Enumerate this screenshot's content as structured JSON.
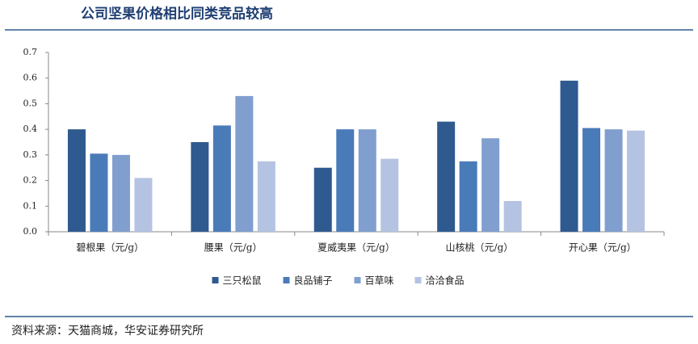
{
  "chart_data": {
    "type": "bar",
    "title": "公司坚果价格相比同类竞品较高",
    "source": "资料来源：天猫商城，华安证券研究所",
    "categories": [
      "碧根果（元/g）",
      "腰果（元/g）",
      "夏威夷果（元/g）",
      "山核桃（元/g）",
      "开心果（元/g）"
    ],
    "series": [
      {
        "name": "三只松鼠",
        "color": "#2f5a8f",
        "values": [
          0.4,
          0.35,
          0.25,
          0.43,
          0.59
        ]
      },
      {
        "name": "良品铺子",
        "color": "#4a7bb9",
        "values": [
          0.305,
          0.415,
          0.4,
          0.275,
          0.405
        ]
      },
      {
        "name": "百草味",
        "color": "#809fcf",
        "values": [
          0.3,
          0.53,
          0.4,
          0.365,
          0.4
        ]
      },
      {
        "name": "洽洽食品",
        "color": "#b4c3e1",
        "values": [
          0.21,
          0.275,
          0.285,
          0.12,
          0.395
        ]
      }
    ],
    "ylim": [
      0,
      0.7
    ],
    "yticks": [
      {
        "value": 0,
        "label": "0.0"
      },
      0.1,
      0.2,
      0.3,
      0.4,
      0.5,
      0.6,
      0.7
    ],
    "grid": false,
    "legend": "bottom"
  }
}
